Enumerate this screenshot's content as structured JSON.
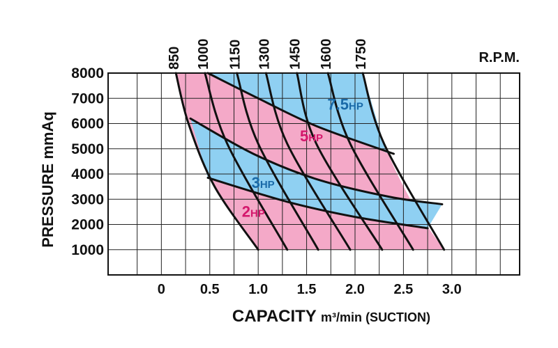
{
  "chart_data": {
    "type": "line",
    "title": "",
    "xlabel_main": "CAPACITY",
    "xlabel_unit": "m³/min",
    "xlabel_suffix": "(SUCTION)",
    "ylabel": "PRESSURE  mmAq",
    "top_axis_label": "R.P.M.",
    "xlim": [
      -0.55,
      3.7
    ],
    "ylim": [
      0,
      8000
    ],
    "x_ticks": [
      "0",
      "0.5",
      "1.0",
      "1.5",
      "2.0",
      "2.5",
      "3.0"
    ],
    "x_tick_values": [
      0,
      0.5,
      1.0,
      1.5,
      2.0,
      2.5,
      3.0
    ],
    "y_ticks": [
      "1000",
      "2000",
      "3000",
      "4000",
      "5000",
      "6000",
      "7000",
      "8000"
    ],
    "y_tick_values": [
      1000,
      2000,
      3000,
      4000,
      5000,
      6000,
      7000,
      8000
    ],
    "grid": true,
    "rpm_series": [
      {
        "name": "850",
        "points": [
          [
            0.15,
            8000
          ],
          [
            0.28,
            6000
          ],
          [
            0.55,
            3500
          ],
          [
            1.0,
            1000
          ]
        ]
      },
      {
        "name": "1000",
        "points": [
          [
            0.45,
            8000
          ],
          [
            0.68,
            5200
          ],
          [
            1.3,
            1000
          ]
        ]
      },
      {
        "name": "1150",
        "points": [
          [
            0.78,
            8000
          ],
          [
            1.0,
            5200
          ],
          [
            1.62,
            1000
          ]
        ]
      },
      {
        "name": "1300",
        "points": [
          [
            1.08,
            8000
          ],
          [
            1.3,
            5200
          ],
          [
            1.95,
            1000
          ]
        ]
      },
      {
        "name": "1450",
        "points": [
          [
            1.4,
            8000
          ],
          [
            1.6,
            5200
          ],
          [
            2.28,
            1000
          ]
        ]
      },
      {
        "name": "1600",
        "points": [
          [
            1.72,
            8000
          ],
          [
            1.95,
            5200
          ],
          [
            2.6,
            1000
          ]
        ]
      },
      {
        "name": "1750",
        "points": [
          [
            2.08,
            8000
          ],
          [
            2.3,
            5200
          ],
          [
            2.92,
            1000
          ]
        ]
      }
    ],
    "hp_bands": [
      {
        "name": "2HP",
        "color": "#f4a9c8",
        "label": "2",
        "unit": "HP",
        "label_color": "#d4176c",
        "label_at": [
          0.95,
          2300
        ]
      },
      {
        "name": "3HP",
        "color": "#8fd0f2",
        "label": "3",
        "unit": "HP",
        "label_color": "#1a6aa8",
        "label_at": [
          1.05,
          3450
        ]
      },
      {
        "name": "5HP",
        "color": "#f4a9c8",
        "label": "5",
        "unit": "HP",
        "label_color": "#d4176c",
        "label_at": [
          1.55,
          5300
        ]
      },
      {
        "name": "7.5HP",
        "color": "#8fd0f2",
        "label": "7.5",
        "unit": "HP",
        "label_color": "#1a6aa8",
        "label_at": [
          1.9,
          6550
        ]
      }
    ],
    "hp_boundaries": [
      {
        "name": "2HP/3HP",
        "points": [
          [
            0.48,
            3850
          ],
          [
            1.3,
            2900
          ],
          [
            2.0,
            2300
          ],
          [
            2.75,
            1850
          ]
        ]
      },
      {
        "name": "3HP/5HP",
        "points": [
          [
            0.3,
            6200
          ],
          [
            0.95,
            4800
          ],
          [
            1.6,
            3800
          ],
          [
            2.35,
            3100
          ],
          [
            2.9,
            2800
          ]
        ]
      },
      {
        "name": "5HP/7.5HP",
        "points": [
          [
            0.48,
            8000
          ],
          [
            1.0,
            7000
          ],
          [
            1.6,
            5900
          ],
          [
            2.4,
            4800
          ]
        ]
      }
    ],
    "envelope": {
      "left": "850",
      "right_points": [
        [
          2.08,
          8000
        ],
        [
          2.3,
          5200
        ],
        [
          2.6,
          2800
        ],
        [
          2.92,
          1000
        ]
      ],
      "top": 8000,
      "bottom": 1000
    }
  }
}
